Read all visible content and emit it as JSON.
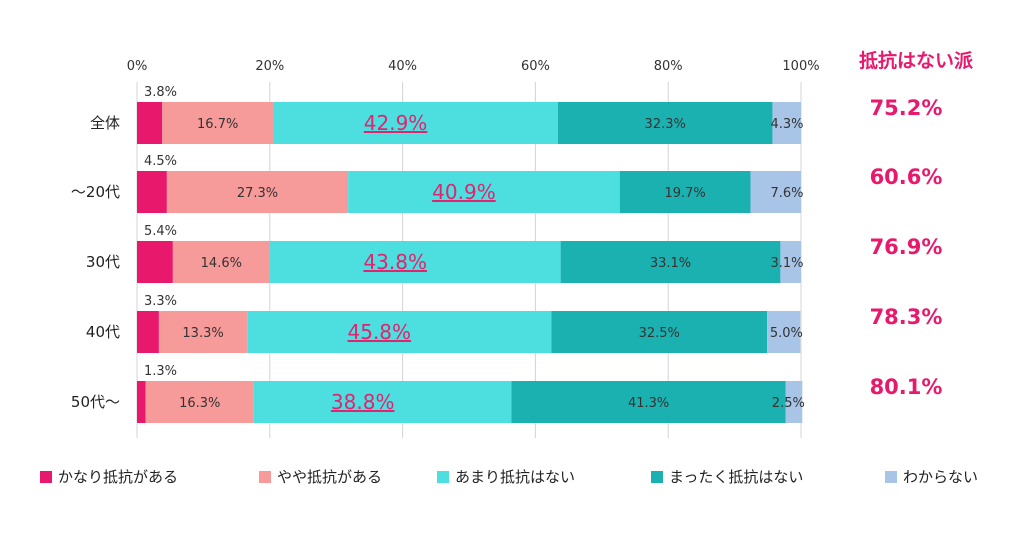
{
  "chart_data": {
    "type": "bar",
    "orientation": "horizontal",
    "stacked": true,
    "categories": [
      "全体",
      "～20代",
      "30代",
      "40代",
      "50代～"
    ],
    "series": [
      {
        "name": "かなり抵抗がある",
        "color": "#e8196d",
        "values": [
          3.8,
          4.5,
          5.4,
          3.3,
          1.3
        ]
      },
      {
        "name": "やや抵抗がある",
        "color": "#f79a9a",
        "values": [
          16.7,
          27.3,
          14.6,
          13.3,
          16.3
        ]
      },
      {
        "name": "あまり抵抗はない",
        "color": "#4ddfe0",
        "values": [
          42.9,
          40.9,
          43.8,
          45.8,
          38.8
        ]
      },
      {
        "name": "まったく抵抗はない",
        "color": "#1bb1b1",
        "values": [
          32.3,
          19.7,
          33.1,
          32.5,
          41.3
        ]
      },
      {
        "name": "わからない",
        "color": "#a8c4e6",
        "values": [
          4.3,
          7.6,
          3.1,
          5.0,
          2.5
        ]
      }
    ],
    "labels": [
      [
        "3.8%",
        "16.7%",
        "42.9%",
        "32.3%",
        "4.3%"
      ],
      [
        "4.5%",
        "27.3%",
        "40.9%",
        "19.7%",
        "7.6%"
      ],
      [
        "5.4%",
        "14.6%",
        "43.8%",
        "33.1%",
        "3.1%"
      ],
      [
        "3.3%",
        "13.3%",
        "45.8%",
        "32.5%",
        "5.0%"
      ],
      [
        "1.3%",
        "16.3%",
        "38.8%",
        "41.3%",
        "2.5%"
      ]
    ],
    "x_ticks": [
      "0%",
      "20%",
      "40%",
      "60%",
      "80%",
      "100%"
    ],
    "xlim": [
      0,
      100
    ],
    "right_title": "抵抗はない派",
    "right_values": [
      "75.2%",
      "60.6%",
      "76.9%",
      "78.3%",
      "80.1%"
    ],
    "legend_position": "bottom",
    "accent_color": "#e8196d",
    "highlight_color": "#e0246e"
  }
}
